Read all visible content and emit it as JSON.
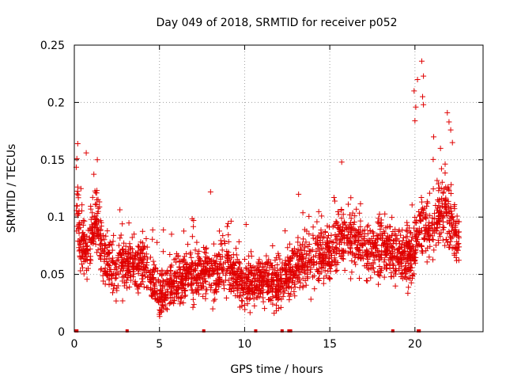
{
  "chart_data": {
    "type": "scatter",
    "title": "Day 049 of 2018, SRMTID for receiver p052",
    "xlabel": "GPS time / hours",
    "ylabel": "SRMTID / TECUs",
    "xlim": [
      0,
      24
    ],
    "ylim": [
      0,
      0.25
    ],
    "xticks": [
      0,
      5,
      10,
      15,
      20
    ],
    "xtick_labels": [
      "0",
      "5",
      "10",
      "15",
      "20"
    ],
    "yticks": [
      0,
      0.05,
      0.1,
      0.15,
      0.2,
      0.25
    ],
    "ytick_labels": [
      "0",
      "0.05",
      "0.1",
      "0.15",
      "0.2",
      "0.25"
    ],
    "grid": true,
    "marker": "+",
    "color": "#e00000",
    "series": [
      {
        "name": "SRMTID",
        "trend": [
          [
            0.1,
            0.13
          ],
          [
            0.3,
            0.085
          ],
          [
            0.6,
            0.07
          ],
          [
            0.9,
            0.075
          ],
          [
            1.2,
            0.1
          ],
          [
            1.5,
            0.09
          ],
          [
            1.8,
            0.06
          ],
          [
            2.5,
            0.055
          ],
          [
            3.0,
            0.06
          ],
          [
            4.0,
            0.06
          ],
          [
            4.5,
            0.05
          ],
          [
            5.0,
            0.03
          ],
          [
            5.5,
            0.04
          ],
          [
            6.0,
            0.045
          ],
          [
            7.0,
            0.05
          ],
          [
            8.0,
            0.05
          ],
          [
            9.0,
            0.055
          ],
          [
            9.5,
            0.05
          ],
          [
            10.0,
            0.04
          ],
          [
            11.0,
            0.045
          ],
          [
            12.0,
            0.04
          ],
          [
            12.5,
            0.05
          ],
          [
            13.0,
            0.06
          ],
          [
            14.0,
            0.065
          ],
          [
            15.0,
            0.07
          ],
          [
            16.0,
            0.085
          ],
          [
            17.0,
            0.07
          ],
          [
            18.0,
            0.075
          ],
          [
            19.0,
            0.065
          ],
          [
            19.8,
            0.065
          ],
          [
            20.3,
            0.095
          ],
          [
            21.0,
            0.085
          ],
          [
            21.5,
            0.11
          ],
          [
            22.0,
            0.1
          ],
          [
            22.6,
            0.075
          ]
        ],
        "spread": 0.022,
        "n_points": 2600,
        "outliers": [
          [
            0.2,
            0.164
          ],
          [
            0.15,
            0.151
          ],
          [
            0.7,
            0.156
          ],
          [
            1.35,
            0.15
          ],
          [
            8.0,
            0.122
          ],
          [
            15.7,
            0.148
          ],
          [
            19.95,
            0.21
          ],
          [
            20.0,
            0.184
          ],
          [
            20.05,
            0.196
          ],
          [
            20.15,
            0.22
          ],
          [
            20.4,
            0.236
          ],
          [
            20.5,
            0.223
          ],
          [
            20.5,
            0.198
          ],
          [
            20.45,
            0.205
          ],
          [
            21.1,
            0.17
          ],
          [
            21.5,
            0.16
          ],
          [
            21.9,
            0.191
          ],
          [
            22.0,
            0.183
          ],
          [
            22.1,
            0.176
          ],
          [
            22.2,
            0.165
          ]
        ]
      }
    ],
    "baseline_markers_x": [
      0.1,
      0.15,
      3.1,
      7.6,
      10.65,
      12.2,
      12.6,
      12.7,
      18.7,
      20.2,
      20.25
    ]
  }
}
